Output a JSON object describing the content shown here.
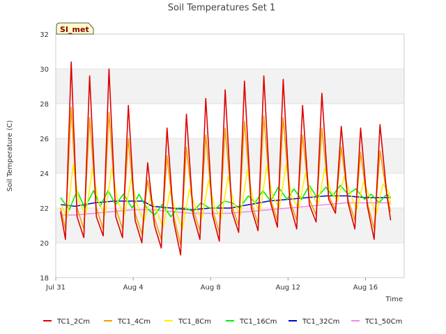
{
  "chart_data": {
    "type": "line",
    "title": "Soil Temperatures Set 1",
    "xlabel": "Time",
    "ylabel": "Soil Temperature (C)",
    "badge": "SI_met",
    "x_tick_labels": [
      "Jul 31",
      "Aug 4",
      "Aug 8",
      "Aug 12",
      "Aug 16"
    ],
    "x_ticks": [
      0,
      4,
      8,
      12,
      16
    ],
    "xlim": [
      0,
      18
    ],
    "ylim": [
      18,
      32
    ],
    "y_ticks": [
      18,
      20,
      22,
      24,
      26,
      28,
      30,
      32
    ],
    "grid": true,
    "legend_position": "bottom",
    "x_unit": "days since Jul 31 00:00",
    "series": [
      {
        "name": "TC1_2Cm",
        "color": "#dd0000",
        "marker": "dash",
        "x": [
          0.25,
          0.5,
          0.8,
          1.1,
          1.45,
          1.75,
          2.1,
          2.45,
          2.75,
          3.1,
          3.45,
          3.75,
          4.1,
          4.45,
          4.75,
          5.1,
          5.45,
          5.75,
          6.1,
          6.45,
          6.75,
          7.1,
          7.45,
          7.75,
          8.1,
          8.45,
          8.75,
          9.1,
          9.45,
          9.75,
          10.1,
          10.45,
          10.75,
          11.1,
          11.45,
          11.75,
          12.1,
          12.45,
          12.75,
          13.1,
          13.45,
          13.75,
          14.1,
          14.45,
          14.75,
          15.1,
          15.45,
          15.75,
          16.1,
          16.45,
          16.75,
          17.1,
          17.3
        ],
        "y": [
          21.8,
          20.2,
          30.4,
          21.5,
          20.3,
          29.6,
          21.5,
          20.4,
          30.0,
          21.5,
          20.3,
          27.9,
          21.3,
          20.0,
          24.6,
          21.0,
          19.7,
          26.6,
          21.2,
          19.3,
          27.4,
          21.6,
          20.2,
          28.3,
          21.6,
          20.1,
          28.8,
          21.8,
          20.6,
          29.3,
          22.0,
          20.7,
          29.6,
          22.3,
          20.9,
          29.4,
          22.2,
          20.8,
          27.9,
          22.2,
          21.2,
          28.6,
          22.5,
          21.7,
          26.7,
          22.3,
          20.8,
          26.6,
          22.1,
          20.2,
          26.8,
          22.8,
          21.3
        ]
      },
      {
        "name": "TC1_4Cm",
        "color": "#f0a000",
        "marker": "dash",
        "x": [
          0.25,
          0.5,
          0.8,
          1.1,
          1.45,
          1.75,
          2.1,
          2.45,
          2.75,
          3.1,
          3.45,
          3.75,
          4.1,
          4.45,
          4.75,
          5.1,
          5.45,
          5.75,
          6.1,
          6.45,
          6.75,
          7.1,
          7.45,
          7.75,
          8.1,
          8.45,
          8.75,
          9.1,
          9.45,
          9.75,
          10.1,
          10.45,
          10.75,
          11.1,
          11.45,
          11.75,
          12.1,
          12.45,
          12.75,
          13.1,
          13.45,
          13.75,
          14.1,
          14.45,
          14.75,
          15.1,
          15.45,
          15.75,
          16.1,
          16.45,
          16.75,
          17.1,
          17.3
        ],
        "y": [
          22.0,
          20.8,
          27.8,
          22.0,
          20.8,
          27.2,
          22.0,
          20.8,
          27.5,
          22.0,
          20.8,
          26.0,
          21.7,
          20.5,
          23.6,
          21.4,
          20.2,
          25.0,
          21.5,
          19.9,
          25.5,
          21.9,
          20.7,
          26.2,
          21.9,
          20.6,
          26.6,
          22.1,
          21.0,
          27.0,
          22.3,
          21.1,
          27.3,
          22.5,
          21.3,
          27.2,
          22.4,
          21.3,
          26.2,
          22.5,
          21.6,
          26.6,
          22.7,
          21.9,
          25.5,
          22.5,
          21.3,
          25.2,
          22.3,
          20.8,
          25.3,
          22.8,
          21.8
        ]
      },
      {
        "name": "TC1_8Cm",
        "color": "#ffee00",
        "marker": "dash",
        "x": [
          0.25,
          0.6,
          0.9,
          1.2,
          1.55,
          1.9,
          2.2,
          2.55,
          2.9,
          3.2,
          3.55,
          3.9,
          4.2,
          4.55,
          4.9,
          5.2,
          5.55,
          5.9,
          6.2,
          6.55,
          6.9,
          7.2,
          7.55,
          7.9,
          8.2,
          8.55,
          8.9,
          9.2,
          9.55,
          9.9,
          10.2,
          10.55,
          10.9,
          11.2,
          11.55,
          11.9,
          12.2,
          12.55,
          12.9,
          13.2,
          13.55,
          13.9,
          14.2,
          14.55,
          14.9,
          15.2,
          15.55,
          15.9,
          16.2,
          16.55,
          16.9,
          17.2,
          17.3
        ],
        "y": [
          22.2,
          21.5,
          24.5,
          22.4,
          21.6,
          24.3,
          22.4,
          21.6,
          24.3,
          22.4,
          21.6,
          23.7,
          22.2,
          21.2,
          22.6,
          21.9,
          20.9,
          23.0,
          21.8,
          20.8,
          23.1,
          22.1,
          21.4,
          23.6,
          22.1,
          21.4,
          23.8,
          22.3,
          21.6,
          24.2,
          22.5,
          21.8,
          24.4,
          22.7,
          22.0,
          24.5,
          22.6,
          22.0,
          24.0,
          22.8,
          22.2,
          24.3,
          23.0,
          22.4,
          23.8,
          22.9,
          21.9,
          23.5,
          22.7,
          21.6,
          23.4,
          22.9,
          22.2
        ]
      },
      {
        "name": "TC1_16Cm",
        "color": "#00ee00",
        "marker": "dash",
        "x": [
          0.25,
          0.7,
          1.1,
          1.5,
          1.95,
          2.3,
          2.7,
          3.1,
          3.5,
          3.95,
          4.3,
          4.7,
          5.1,
          5.5,
          5.95,
          6.3,
          6.7,
          7.1,
          7.5,
          7.95,
          8.3,
          8.7,
          9.1,
          9.5,
          9.95,
          10.3,
          10.7,
          11.1,
          11.5,
          11.95,
          12.3,
          12.7,
          13.1,
          13.5,
          13.95,
          14.3,
          14.7,
          15.1,
          15.5,
          15.95,
          16.3,
          16.7,
          17.1,
          17.3
        ],
        "y": [
          22.6,
          21.9,
          23.0,
          22.0,
          23.0,
          22.1,
          23.0,
          22.2,
          22.8,
          22.0,
          22.8,
          22.0,
          21.6,
          22.2,
          21.5,
          22.0,
          22.0,
          21.8,
          22.3,
          22.0,
          22.0,
          22.4,
          22.3,
          22.0,
          22.7,
          22.3,
          23.0,
          22.4,
          23.2,
          22.5,
          23.1,
          22.5,
          23.3,
          22.6,
          23.2,
          22.7,
          23.3,
          22.8,
          23.1,
          22.5,
          22.8,
          22.3,
          22.8,
          22.6
        ]
      },
      {
        "name": "TC1_32Cm",
        "color": "#0000cc",
        "marker": "dash",
        "x": [
          0.25,
          1.0,
          2.0,
          3.0,
          4.0,
          4.5,
          5.0,
          6.0,
          7.0,
          8.0,
          9.0,
          10.0,
          11.0,
          12.0,
          13.0,
          14.0,
          15.0,
          16.0,
          17.0,
          17.3
        ],
        "y": [
          22.2,
          22.1,
          22.3,
          22.4,
          22.4,
          22.4,
          22.1,
          22.0,
          21.9,
          22.0,
          22.0,
          22.2,
          22.4,
          22.5,
          22.6,
          22.7,
          22.7,
          22.6,
          22.6,
          22.6
        ]
      },
      {
        "name": "TC1_50Cm",
        "color": "#ee88ee",
        "marker": "dash",
        "x": [
          0.25,
          1.0,
          2.0,
          3.0,
          4.0,
          5.0,
          6.0,
          7.0,
          8.0,
          9.0,
          10.0,
          11.0,
          12.0,
          13.0,
          14.0,
          15.0,
          16.0,
          17.0,
          17.3
        ],
        "y": [
          21.6,
          21.6,
          21.7,
          21.8,
          21.9,
          21.9,
          21.8,
          21.7,
          21.7,
          21.7,
          21.8,
          21.9,
          22.0,
          22.1,
          22.2,
          22.3,
          22.3,
          22.3,
          22.3
        ]
      }
    ]
  }
}
